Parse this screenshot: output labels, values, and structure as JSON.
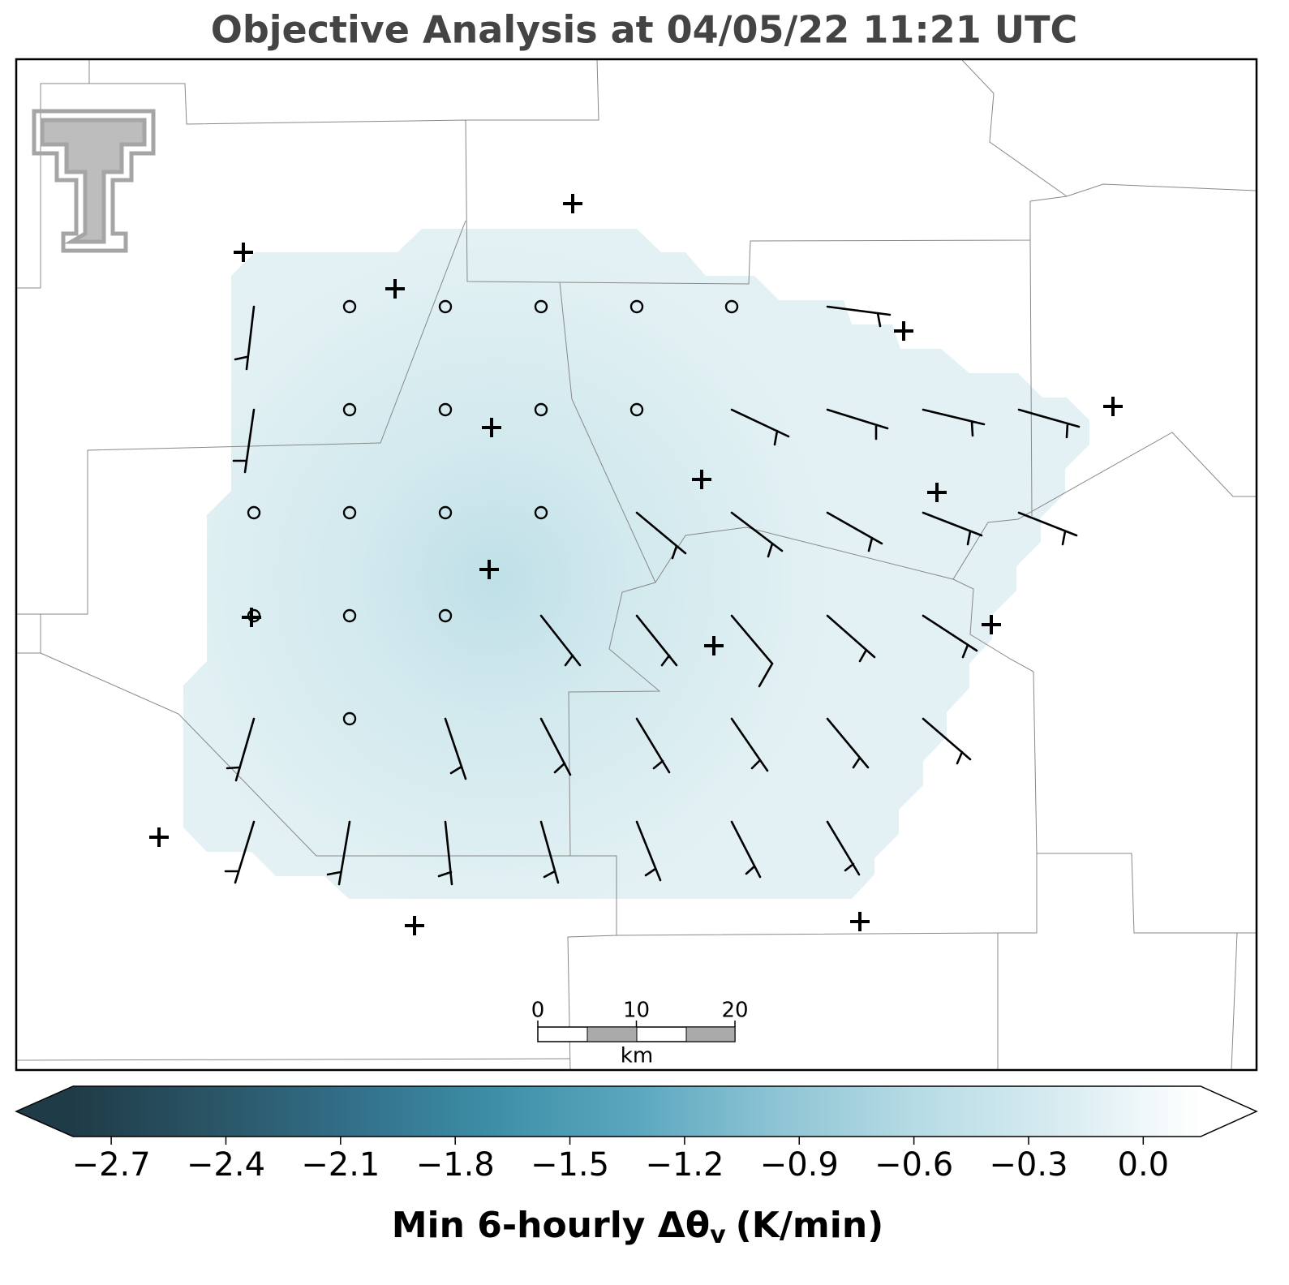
{
  "title": "Objective Analysis at 04/05/22 11:21 UTC",
  "colorbar": {
    "range": [
      -2.8,
      0.15
    ],
    "colors": [
      "#1f3b47",
      "#2a5566",
      "#33708a",
      "#3d8fa8",
      "#5ba7bf",
      "#8ec4d4",
      "#b7dce5",
      "#d8ecf1",
      "#ffffff"
    ],
    "ticks": [
      {
        "value": -2.7,
        "label": "−2.7"
      },
      {
        "value": -2.4,
        "label": "−2.4"
      },
      {
        "value": -2.1,
        "label": "−2.1"
      },
      {
        "value": -1.8,
        "label": "−1.8"
      },
      {
        "value": -1.5,
        "label": "−1.5"
      },
      {
        "value": -1.2,
        "label": "−1.2"
      },
      {
        "value": -0.9,
        "label": "−0.9"
      },
      {
        "value": -0.6,
        "label": "−0.6"
      },
      {
        "value": -0.3,
        "label": "−0.3"
      },
      {
        "value": 0,
        "label": "0.0"
      }
    ],
    "label": "Min 6-hourly Δθ",
    "label_subscript": "v",
    "label_units": "(K/min)"
  },
  "scale_bar": {
    "ticks": [
      0,
      10,
      20
    ],
    "unit": "km"
  }
}
